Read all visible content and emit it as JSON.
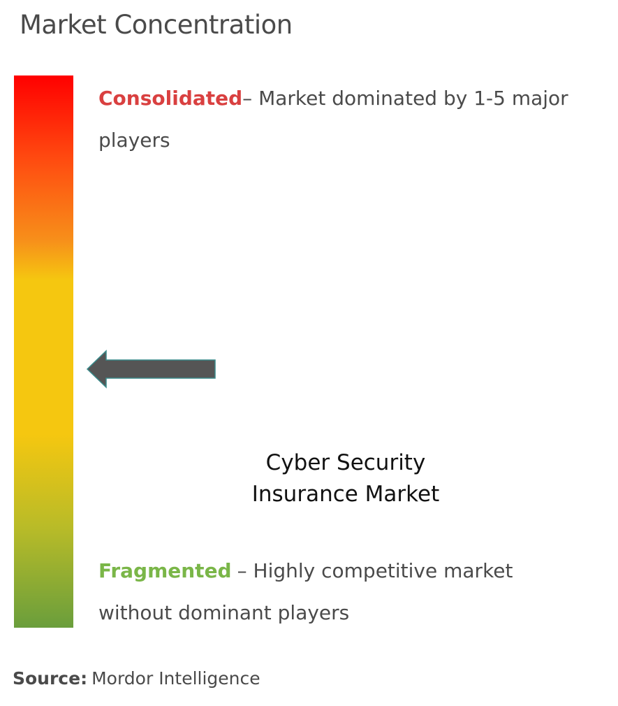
{
  "title": "Market Concentration",
  "consolidated": {
    "label": "Consolidated",
    "description": "– Market dominated by 1-5 major players"
  },
  "fragmented": {
    "label": "Fragmented",
    "description": "– Highly competitive market without dominant players"
  },
  "market": {
    "lines": [
      "Cyber Security",
      "Insurance Market"
    ]
  },
  "source": {
    "label": "Source:",
    "value": "Mordor Intelligence"
  }
}
